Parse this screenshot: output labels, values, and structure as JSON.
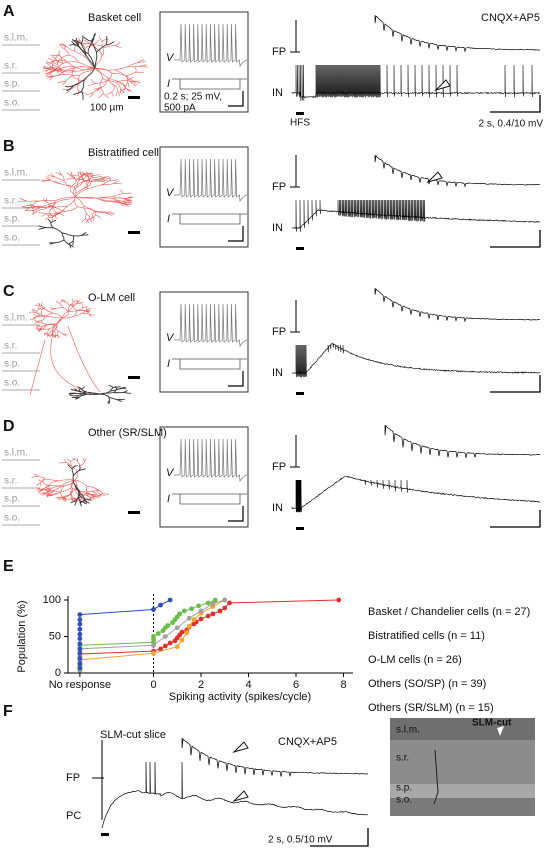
{
  "panels": [
    {
      "label": "A",
      "cell": "Basket cell",
      "layers": [
        "s.l.m.",
        "s.r.",
        "s.p.",
        "s.o."
      ],
      "morph_scale": "100 µm",
      "inset": {
        "v": "V",
        "i": "I",
        "scale": [
          "0.2 s; 25 mV,",
          "500 pA"
        ]
      },
      "traces": {
        "fp": "FP",
        "in": "IN",
        "condition": "CNQX+AP5",
        "stim": "HFS",
        "scale": "2 s, 0.4/10 mV"
      }
    },
    {
      "label": "B",
      "cell": "Bistratified cell",
      "layers": [
        "s.l.m.",
        "s.r.",
        "s.p.",
        "s.o."
      ],
      "inset": {
        "v": "V",
        "i": "I"
      },
      "traces": {
        "fp": "FP",
        "in": "IN"
      }
    },
    {
      "label": "C",
      "cell": "O-LM cell",
      "layers": [
        "s.l.m.",
        "s.r.",
        "s.p.",
        "s.o."
      ],
      "inset": {
        "v": "V",
        "i": "I"
      },
      "traces": {
        "fp": "FP",
        "in": "IN"
      }
    },
    {
      "label": "D",
      "cell": "Other (SR/SLM)",
      "layers": [
        "s.l.m.",
        "s.r.",
        "s.p.",
        "s.o."
      ],
      "inset": {
        "v": "V",
        "i": "I"
      },
      "traces": {
        "fp": "FP",
        "in": "IN"
      }
    }
  ],
  "chart_data": {
    "type": "line",
    "label": "E",
    "xlabel": "Spiking activity (spikes/cycle)",
    "ylabel": "Population (%)",
    "xlim": [
      -3.6,
      8.4
    ],
    "ylim": [
      0,
      100
    ],
    "xticks": [
      {
        "value": -3.1,
        "label": "No response"
      },
      0,
      2,
      4,
      6,
      8
    ],
    "yticks": [
      0,
      50,
      100
    ],
    "series": [
      {
        "name": "Basket / Chandelier cells (n = 27)",
        "color": "#e0302e",
        "x": [
          -3.1,
          -3.1,
          -3.1,
          -3.1,
          -3.1,
          -3.1,
          -3.1,
          0,
          0.3,
          0.5,
          0.7,
          0.9,
          1.0,
          1.1,
          1.2,
          1.4,
          1.5,
          1.7,
          1.8,
          2.0,
          2.3,
          2.5,
          2.8,
          3.0,
          3.2,
          7.8
        ],
        "values": [
          4,
          7,
          11,
          15,
          19,
          22,
          26,
          30,
          33,
          37,
          41,
          44,
          48,
          52,
          56,
          59,
          63,
          67,
          70,
          74,
          78,
          81,
          85,
          89,
          96,
          100
        ]
      },
      {
        "name": "Bistratified cells (n = 11)",
        "color": "#f2a62a",
        "x": [
          -3.1,
          -3.1,
          0,
          1.0,
          1.2,
          1.4,
          1.5,
          1.7,
          2.0,
          2.5,
          3.0
        ],
        "values": [
          9,
          18,
          27,
          36,
          45,
          55,
          64,
          73,
          82,
          91,
          100
        ]
      },
      {
        "name": "O-LM cells (n = 26)",
        "color": "#6abf4b",
        "x": [
          -3.1,
          -3.1,
          -3.1,
          -3.1,
          -3.1,
          -3.1,
          -3.1,
          -3.1,
          -3.1,
          -3.1,
          0,
          0,
          0,
          0.2,
          0.4,
          0.5,
          0.6,
          0.8,
          0.9,
          1.0,
          1.1,
          1.3,
          1.6,
          1.9,
          2.3,
          2.6
        ],
        "values": [
          4,
          8,
          12,
          15,
          19,
          23,
          27,
          31,
          35,
          38,
          42,
          46,
          50,
          54,
          58,
          62,
          65,
          69,
          73,
          77,
          81,
          85,
          88,
          92,
          96,
          100
        ]
      },
      {
        "name": "Others (SO/SP) (n = 39)",
        "color": "#a0a0a0",
        "x": [
          -3.1,
          -3.1,
          -3.1,
          -3.1,
          -3.1,
          0,
          0.5,
          1.0,
          1.5,
          2.0,
          2.5,
          3.0
        ],
        "values": [
          8,
          15,
          23,
          28,
          33,
          38,
          50,
          62,
          75,
          85,
          95,
          100
        ]
      },
      {
        "name": "Others (SR/SLM) (n = 15)",
        "color": "#3050b8",
        "x": [
          -3.1,
          -3.1,
          -3.1,
          -3.1,
          -3.1,
          -3.1,
          -3.1,
          -3.1,
          -3.1,
          -3.1,
          -3.1,
          -3.1,
          0,
          0.3,
          0.7
        ],
        "values": [
          7,
          13,
          20,
          27,
          33,
          40,
          47,
          53,
          60,
          67,
          73,
          80,
          87,
          93,
          100
        ]
      }
    ]
  },
  "panel_f": {
    "label": "F",
    "title": "SLM-cut slice",
    "condition": "CNQX+AP5",
    "fp": "FP",
    "pc": "PC",
    "scale": "2 s, 0.5/10 mV",
    "image_labels": [
      "s.l.m.",
      "SLM-cut",
      "s.r.",
      "s.p.",
      "s.o."
    ]
  }
}
